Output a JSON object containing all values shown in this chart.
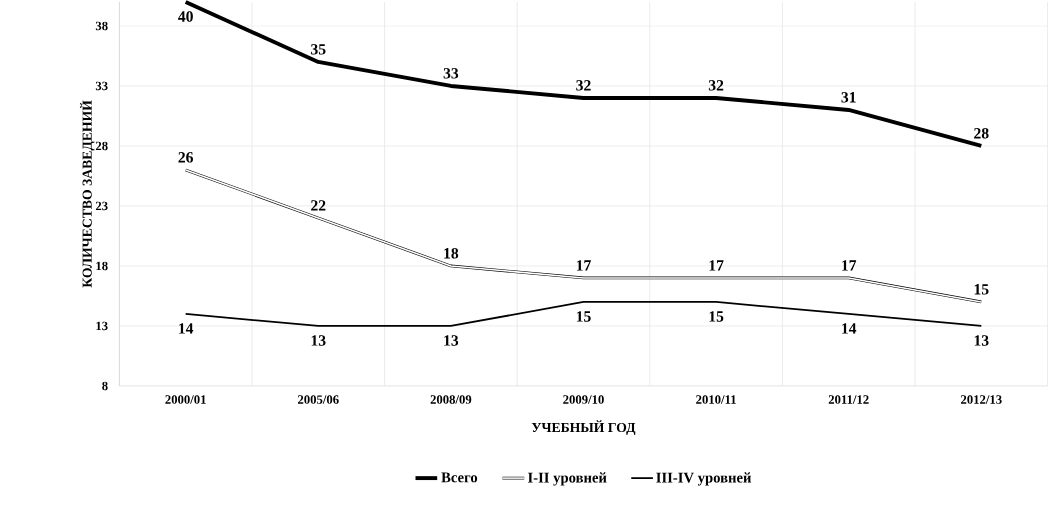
{
  "chart_data": {
    "type": "line",
    "xlabel": "УЧЕБНЫЙ ГОД",
    "ylabel": "КОЛИЧЕСТВО ЗАВЕДЕНИЙ",
    "categories": [
      "2000/01",
      "2005/06",
      "2008/09",
      "2009/10",
      "2010/11",
      "2011/12",
      "2012/13"
    ],
    "ylim": [
      8,
      40
    ],
    "yticks": [
      8,
      13,
      18,
      23,
      28,
      33,
      38
    ],
    "grid": true,
    "legend": "bottom",
    "data_labels": true,
    "marker": "none",
    "series": [
      {
        "name": "Всего",
        "color": "#000000",
        "values": [
          40,
          35,
          33,
          32,
          32,
          31,
          28
        ]
      },
      {
        "name": "I-II уровней",
        "color": "#000000",
        "values": [
          26,
          22,
          18,
          17,
          17,
          17,
          15
        ]
      },
      {
        "name": "III-IV уровней",
        "color": "#000000",
        "values": [
          14,
          13,
          13,
          15,
          15,
          14,
          13
        ]
      }
    ]
  }
}
